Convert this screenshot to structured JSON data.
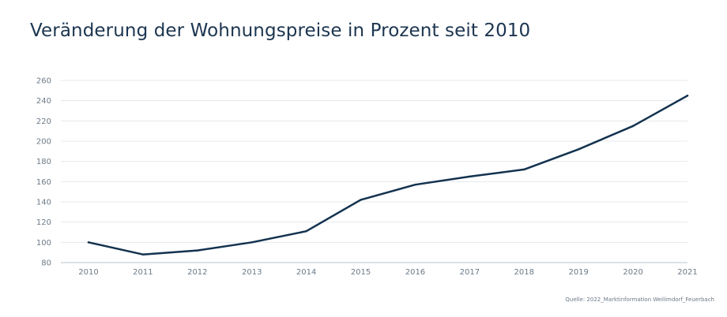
{
  "chart_data": {
    "type": "line",
    "title": "Veränderung der Wohnungspreise in Prozent seit 2010",
    "xlabel": "",
    "ylabel": "",
    "x": [
      "2010",
      "2011",
      "2012",
      "2013",
      "2014",
      "2015",
      "2016",
      "2017",
      "2018",
      "2019",
      "2020",
      "2021"
    ],
    "series": [
      {
        "values": [
          100,
          88,
          92,
          100,
          111,
          142,
          157,
          165,
          172,
          192,
          215,
          245
        ]
      }
    ],
    "ylim": [
      80,
      260
    ],
    "yticks": [
      80,
      100,
      120,
      140,
      160,
      180,
      200,
      220,
      240,
      260
    ],
    "grid": true,
    "line_color": "#13324f",
    "grid_color": "#e4e8ec"
  },
  "source": "Quelle: 2022_Marktinformation Weilimdorf_Feuerbach"
}
